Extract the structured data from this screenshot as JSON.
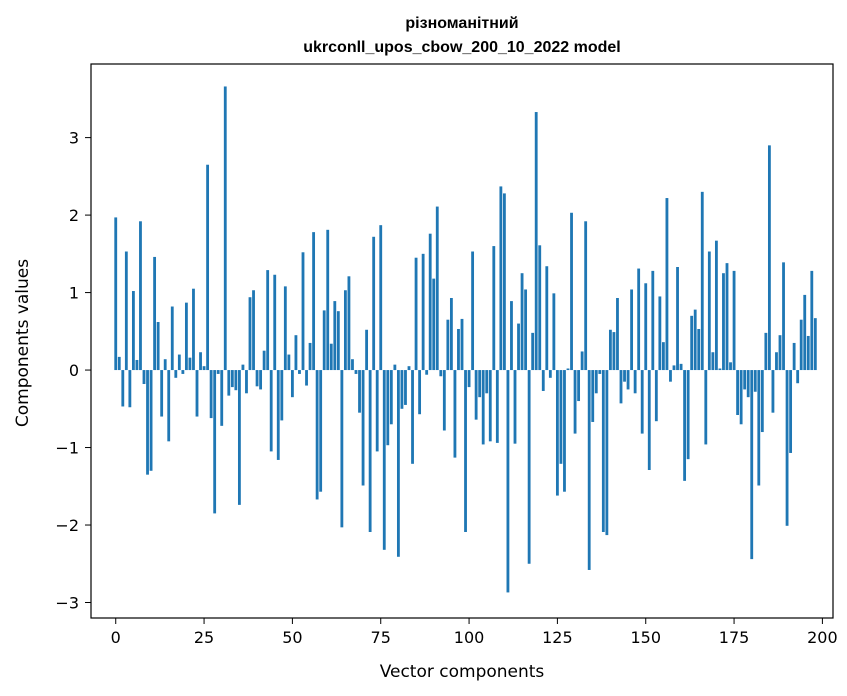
{
  "chart_data": {
    "type": "bar",
    "title": "різноманітний",
    "subtitle": "ukrconll_upos_cbow_200_10_2022 model",
    "xlabel": "Vector components",
    "ylabel": "Components values",
    "xlim": [
      -7,
      203
    ],
    "ylim": [
      -3.2,
      3.95
    ],
    "xticks": [
      0,
      25,
      50,
      75,
      100,
      125,
      150,
      175,
      200
    ],
    "yticks": [
      -3,
      -2,
      -1,
      0,
      1,
      2,
      3
    ],
    "xtick_labels": [
      "0",
      "25",
      "50",
      "75",
      "100",
      "125",
      "150",
      "175",
      "200"
    ],
    "ytick_labels": [
      "−3",
      "−2",
      "−1",
      "0",
      "1",
      "2",
      "3"
    ],
    "bar_color": "#1f77b4",
    "grid": false,
    "values": [
      1.97,
      0.17,
      -0.47,
      1.53,
      -0.48,
      1.02,
      0.13,
      1.92,
      -0.18,
      -1.35,
      -1.3,
      1.46,
      0.62,
      -0.6,
      0.14,
      -0.92,
      0.82,
      -0.1,
      0.2,
      -0.05,
      0.87,
      0.16,
      1.05,
      -0.6,
      0.23,
      0.05,
      2.65,
      -0.62,
      -1.85,
      -0.05,
      -0.72,
      3.66,
      -0.33,
      -0.22,
      -0.26,
      -1.74,
      0.07,
      -0.3,
      0.94,
      1.03,
      -0.21,
      -0.25,
      0.25,
      1.29,
      -1.05,
      1.23,
      -1.16,
      -0.65,
      1.08,
      0.2,
      -0.35,
      0.45,
      -0.05,
      1.52,
      -0.2,
      0.35,
      1.78,
      -1.67,
      -1.57,
      0.77,
      1.81,
      0.34,
      0.89,
      0.76,
      -2.03,
      1.03,
      1.21,
      0.14,
      -0.05,
      -0.55,
      -1.49,
      0.52,
      -2.09,
      1.72,
      -1.05,
      1.87,
      -2.32,
      -0.97,
      -0.7,
      0.07,
      -2.41,
      -0.5,
      -0.45,
      0.05,
      -1.21,
      1.45,
      -0.57,
      1.5,
      -0.06,
      1.76,
      1.18,
      2.11,
      -0.08,
      -0.78,
      0.65,
      0.93,
      -1.13,
      0.53,
      0.66,
      -2.09,
      -0.22,
      1.53,
      -0.64,
      -0.35,
      -0.96,
      -0.3,
      -0.92,
      1.6,
      -0.94,
      2.37,
      2.28,
      -2.87,
      0.89,
      -0.95,
      0.6,
      1.25,
      1.04,
      -2.5,
      0.48,
      3.33,
      1.61,
      -0.27,
      1.34,
      -0.1,
      0.99,
      -1.62,
      -1.21,
      -1.57,
      0.02,
      2.03,
      -0.82,
      -0.4,
      0.24,
      1.92,
      -2.58,
      -0.67,
      -0.3,
      -0.05,
      -2.09,
      -2.13,
      0.52,
      0.49,
      0.93,
      -0.43,
      -0.15,
      -0.25,
      1.04,
      -0.3,
      1.31,
      -0.82,
      1.12,
      -1.29,
      1.28,
      -0.66,
      0.95,
      0.36,
      2.22,
      -0.15,
      0.06,
      1.33,
      0.08,
      -1.43,
      -1.15,
      0.7,
      0.78,
      0.53,
      2.3,
      -0.96,
      1.53,
      0.23,
      1.67,
      0.02,
      1.25,
      1.38,
      0.1,
      1.28,
      -0.58,
      -0.7,
      -0.25,
      -0.35,
      -2.44,
      -0.28,
      -1.49,
      -0.8,
      0.48,
      2.9,
      -0.55,
      0.23,
      0.45,
      1.39,
      -2.01,
      -1.07,
      0.35,
      -0.17,
      0.65,
      0.97,
      0.44,
      1.28,
      0.67
    ]
  }
}
